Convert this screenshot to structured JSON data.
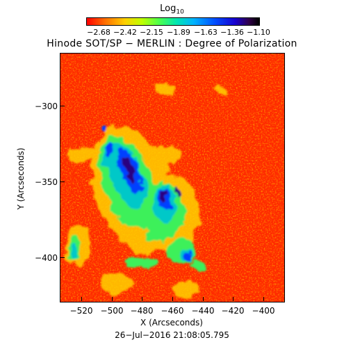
{
  "colorbar": {
    "label_main": "Log",
    "label_sub": "10",
    "ticks": [
      "−2.68",
      "−2.42",
      "−2.15",
      "−1.89",
      "−1.63",
      "−1.36",
      "−1.10"
    ]
  },
  "chart_data": {
    "type": "heatmap",
    "title": "Hinode SOT/SP − MERLIN : Degree of Polarization",
    "xlabel": "X (Arcseconds)",
    "ylabel": "Y (Arcseconds)",
    "x_ticks": [
      "−520",
      "−500",
      "−480",
      "−460",
      "−440",
      "−420",
      "−400"
    ],
    "y_ticks": [
      "−300",
      "−350",
      "−400"
    ],
    "x_tick_values": [
      -520,
      -500,
      -480,
      -460,
      -440,
      -420,
      -400
    ],
    "y_tick_values": [
      -300,
      -350,
      -400
    ],
    "xlim": [
      -530,
      -382
    ],
    "ylim": [
      -428,
      -264
    ],
    "colorbar_range": [
      -2.68,
      -1.1
    ],
    "colormap": [
      "#ff0000",
      "#ff6a00",
      "#ffd000",
      "#bfff00",
      "#4dff4d",
      "#00e6b0",
      "#00b4ff",
      "#0050ff",
      "#1800d0",
      "#30004a",
      "#000000"
    ],
    "background_color": "#ff3000"
  },
  "footer": {
    "timestamp": "26−Jul−2016 21:08:05.795"
  }
}
